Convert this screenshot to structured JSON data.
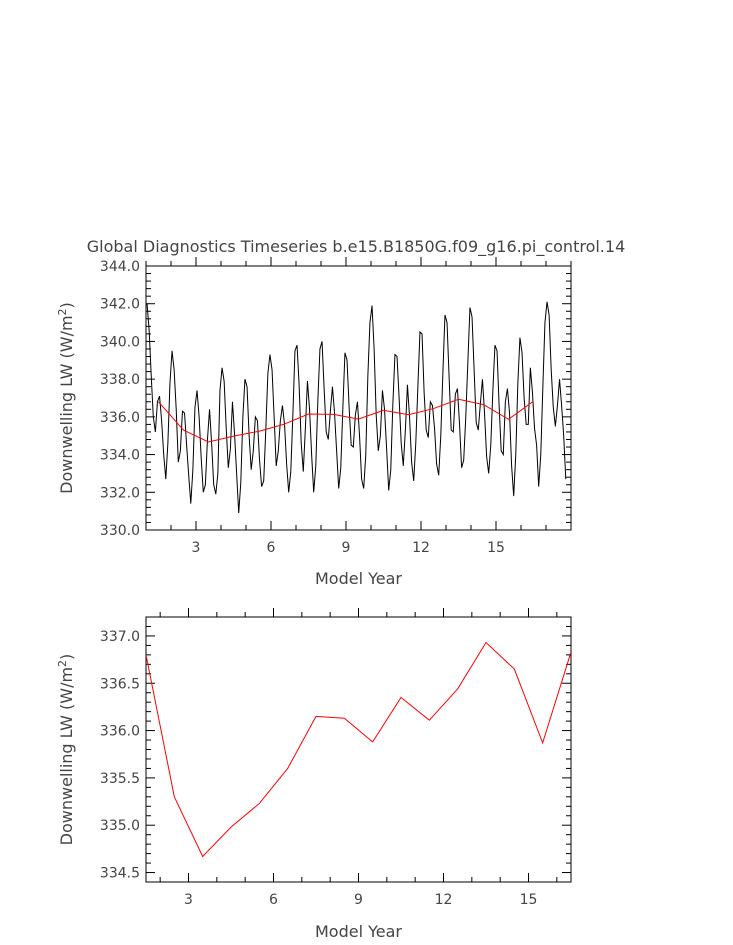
{
  "figure_title": "Global Diagnostics Timeseries b.e15.B1850G.f09_g16.pi_control.14",
  "chart_data": [
    {
      "type": "line",
      "title": "",
      "xlabel": "Model Year",
      "ylabel_prefix": "Downwelling LW (W/m",
      "ylabel_sup": "2",
      "ylabel_suffix": ")",
      "xlim": [
        1,
        18
      ],
      "ylim": [
        330,
        344
      ],
      "xticks": [
        3,
        6,
        9,
        12,
        15
      ],
      "yticks": [
        330.0,
        332.0,
        334.0,
        336.0,
        338.0,
        340.0,
        342.0,
        344.0
      ],
      "ytick_labels": [
        "330.0",
        "332.0",
        "334.0",
        "336.0",
        "338.0",
        "340.0",
        "342.0",
        "344.0"
      ],
      "series": [
        {
          "color": "#000000",
          "x_start": 1.0417,
          "x_step": 0.08333,
          "values": [
            342.0,
            340.6,
            338.2,
            336.0,
            335.2,
            336.8,
            337.1,
            335.8,
            334.0,
            332.7,
            334.6,
            337.8,
            339.5,
            338.5,
            336.4,
            333.6,
            334.2,
            336.3,
            336.2,
            334.5,
            332.9,
            331.4,
            333.2,
            336.5,
            337.4,
            336.0,
            333.8,
            332.0,
            332.4,
            334.8,
            336.4,
            334.6,
            332.4,
            331.9,
            333.0,
            337.4,
            338.6,
            337.9,
            335.4,
            333.3,
            334.3,
            336.8,
            335.1,
            333.0,
            330.9,
            332.5,
            336.0,
            338.0,
            337.6,
            335.0,
            333.2,
            334.2,
            336.0,
            335.8,
            333.7,
            332.3,
            332.6,
            335.3,
            338.3,
            339.3,
            338.5,
            336.0,
            333.4,
            334.2,
            335.8,
            336.6,
            335.6,
            333.5,
            332.0,
            333.1,
            336.1,
            339.5,
            339.8,
            337.7,
            334.6,
            333.1,
            335.4,
            337.9,
            336.4,
            334.0,
            332.0,
            333.4,
            336.9,
            339.6,
            340.0,
            337.5,
            335.2,
            334.8,
            336.3,
            337.6,
            336.2,
            334.2,
            332.2,
            333.3,
            336.5,
            339.4,
            339.0,
            336.5,
            334.5,
            334.4,
            336.1,
            336.8,
            335.0,
            332.7,
            332.2,
            334.0,
            338.2,
            341.0,
            341.9,
            339.6,
            336.1,
            334.2,
            335.0,
            337.4,
            336.4,
            334.3,
            332.1,
            333.2,
            336.7,
            339.3,
            339.2,
            337.0,
            334.6,
            333.4,
            335.3,
            337.7,
            336.0,
            333.6,
            332.6,
            334.6,
            337.6,
            340.5,
            340.4,
            337.3,
            335.3,
            334.9,
            336.8,
            336.6,
            335.4,
            333.5,
            332.9,
            335.0,
            338.3,
            341.4,
            341.0,
            338.1,
            335.3,
            335.2,
            337.2,
            337.5,
            335.6,
            333.3,
            333.7,
            336.0,
            338.9,
            341.8,
            341.3,
            338.5,
            335.7,
            335.3,
            336.7,
            338.0,
            336.2,
            333.9,
            333.0,
            334.5,
            337.4,
            339.8,
            339.5,
            336.6,
            334.2,
            334.0,
            336.8,
            337.5,
            336.2,
            333.4,
            331.8,
            334.0,
            337.8,
            340.2,
            339.4,
            337.0,
            335.6,
            335.6,
            338.6,
            337.3,
            335.4,
            334.5,
            332.3,
            334.0,
            337.6,
            341.0,
            342.1,
            341.4,
            338.5,
            336.5,
            335.5,
            336.6,
            338.0,
            336.6,
            335.0,
            332.7
          ]
        },
        {
          "color": "#ff0000",
          "x": [
            1.5,
            2.5,
            3.5,
            4.5,
            5.5,
            6.5,
            7.5,
            8.5,
            9.5,
            10.5,
            11.5,
            12.5,
            13.5,
            14.5,
            15.5,
            16.5
          ],
          "values": [
            336.8,
            335.3,
            334.67,
            334.98,
            335.23,
            335.6,
            336.15,
            336.13,
            335.88,
            336.35,
            336.11,
            336.44,
            336.93,
            336.65,
            335.87,
            336.83
          ]
        }
      ]
    },
    {
      "type": "line",
      "title": "",
      "xlabel": "Model Year",
      "ylabel_prefix": "Downwelling LW (W/m",
      "ylabel_sup": "2",
      "ylabel_suffix": ")",
      "xlim": [
        1.5,
        16.5
      ],
      "ylim": [
        334.4,
        337.2
      ],
      "xticks": [
        3,
        6,
        9,
        12,
        15
      ],
      "yticks": [
        334.5,
        335.0,
        335.5,
        336.0,
        336.5,
        337.0
      ],
      "ytick_labels": [
        "334.5",
        "335.0",
        "335.5",
        "336.0",
        "336.5",
        "337.0"
      ],
      "series": [
        {
          "color": "#ff0000",
          "x": [
            1.5,
            2.5,
            3.5,
            4.5,
            5.5,
            6.5,
            7.5,
            8.5,
            9.5,
            10.5,
            11.5,
            12.5,
            13.5,
            14.5,
            15.5,
            16.5
          ],
          "values": [
            336.8,
            335.3,
            334.67,
            334.98,
            335.23,
            335.6,
            336.15,
            336.13,
            335.88,
            336.35,
            336.11,
            336.44,
            336.93,
            336.65,
            335.87,
            336.83
          ]
        }
      ]
    }
  ]
}
